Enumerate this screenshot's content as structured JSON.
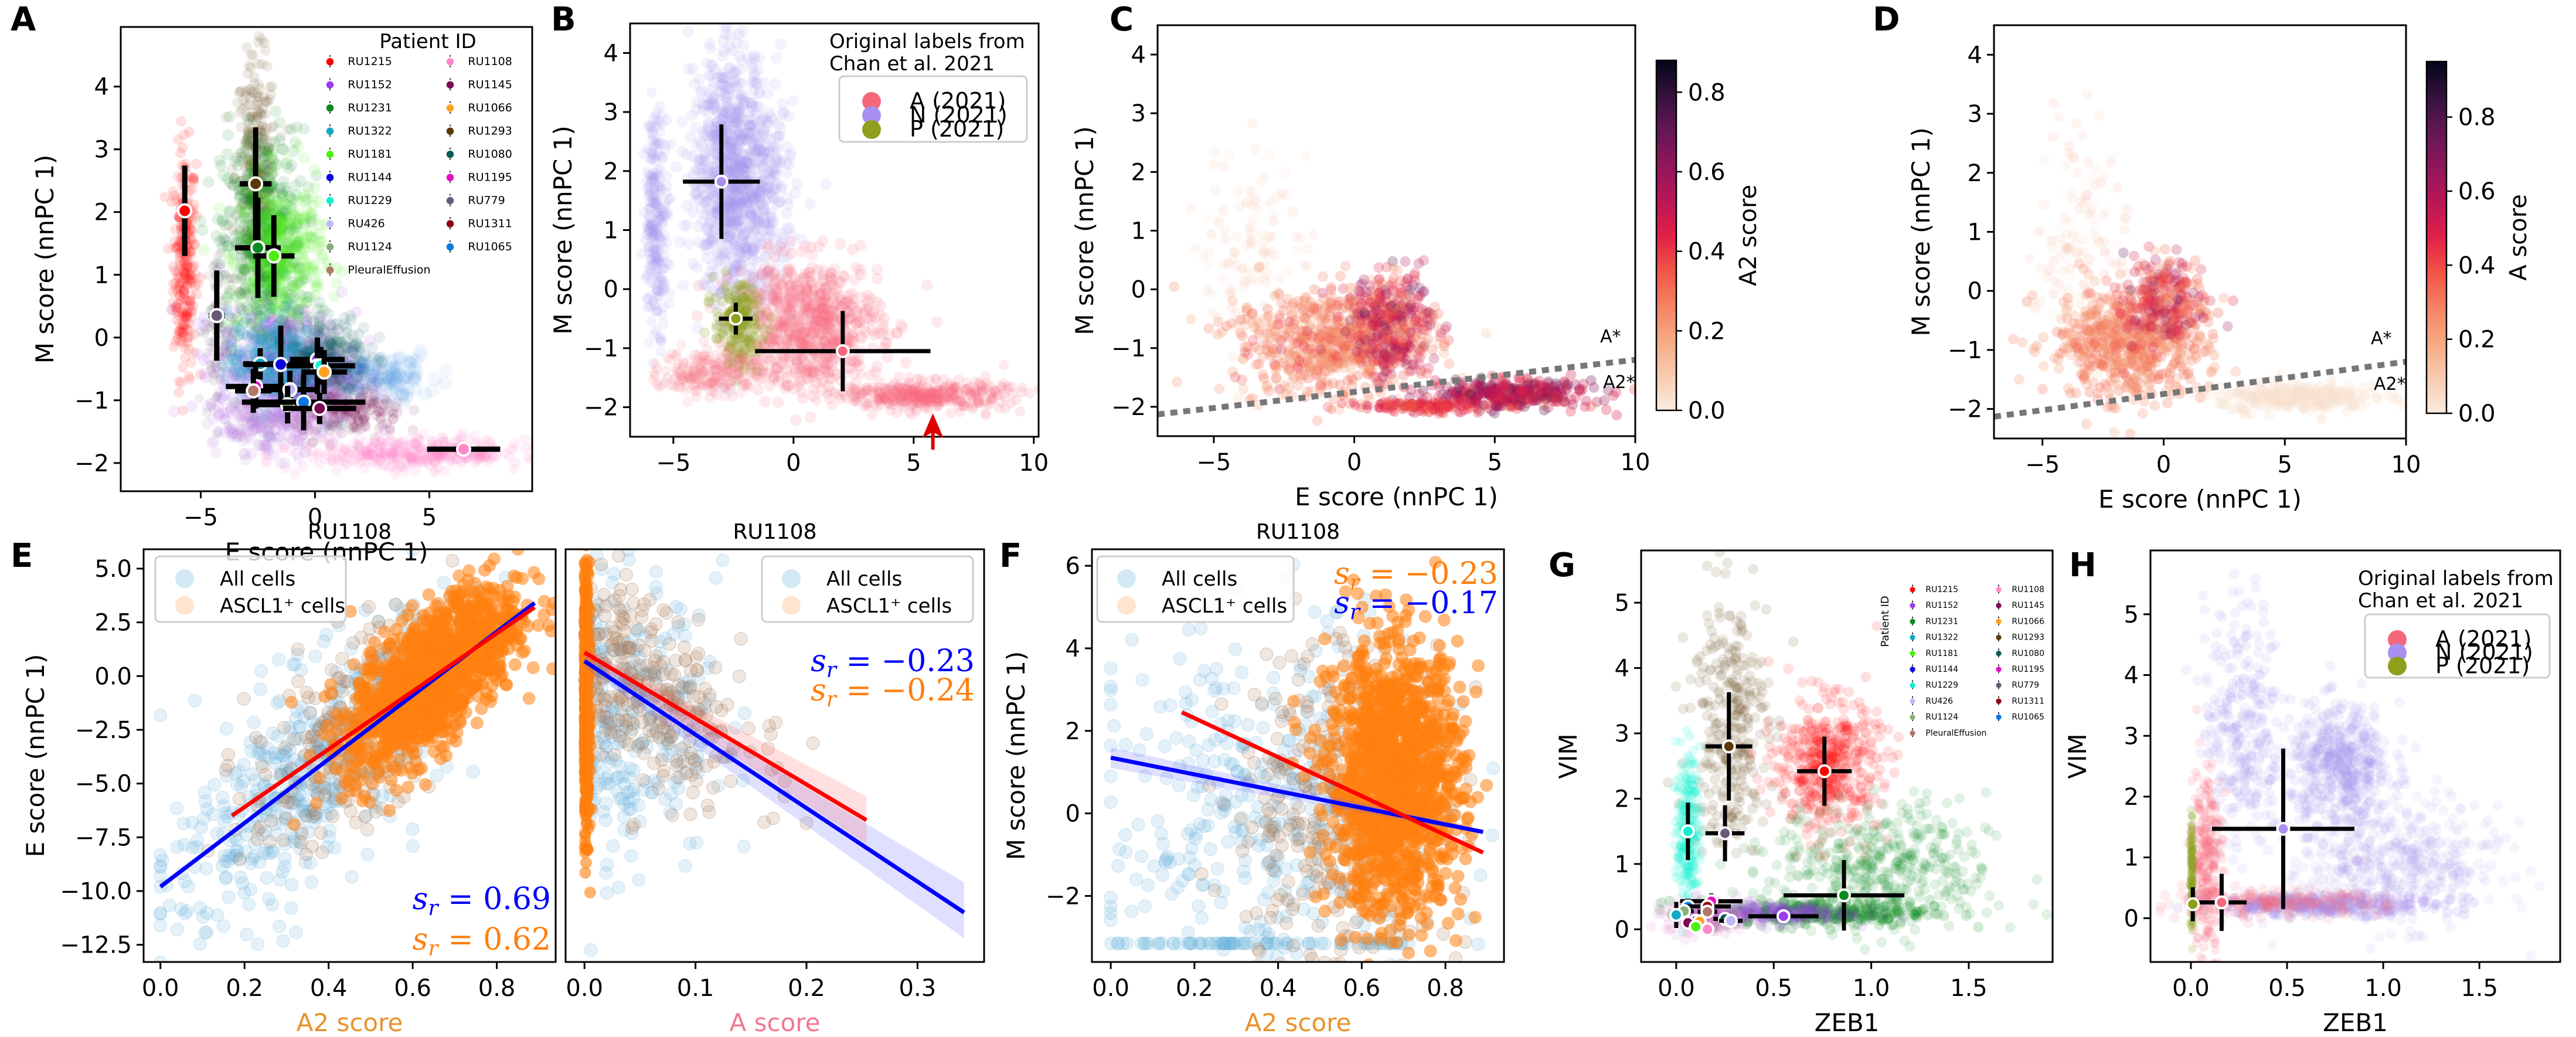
{
  "figure": {
    "panel_letters": [
      "A",
      "B",
      "C",
      "D",
      "E",
      "F",
      "G",
      "H"
    ]
  },
  "colors": {
    "patients": {
      "RU1215": "#ff0000",
      "RU1152": "#9b3cf0",
      "RU1231": "#0a8a1e",
      "RU1322": "#12a8c8",
      "RU1181": "#4cf010",
      "RU1144": "#0a00e0",
      "RU1229": "#10f0d0",
      "RU426": "#c0b8f8",
      "RU1124": "#88b078",
      "PleuralEffusion": "#b07868",
      "RU1108": "#ff88cc",
      "RU1145": "#7a0a50",
      "RU1066": "#ffa020",
      "RU1293": "#5a3808",
      "RU1080": "#0a5a58",
      "RU1195": "#e010c0",
      "RU779": "#6a5878",
      "RU1311": "#900010",
      "RU1065": "#0a78e0"
    },
    "A_2021": "#f5687c",
    "N_2021": "#a890f0",
    "P_2021": "#8ea01c",
    "all_cells": "#6ab4dc",
    "ascl1_cells": "#ff7f0e",
    "fit_all": "#0000ff",
    "fit_ascl1": "#ff0000",
    "divider_line": "#777777",
    "arrow": "#e00000",
    "axis_label_A2": "#e8922a",
    "axis_label_A": "#f07890"
  },
  "chart_data": [
    {
      "panel": "A",
      "type": "scatter",
      "xlabel": "E score (nnPC 1)",
      "ylabel": "M score (nnPC 1)",
      "xlim": [
        -8.5,
        9.5
      ],
      "ylim": [
        -2.45,
        4.95
      ],
      "xticks": [
        -5,
        0,
        5
      ],
      "yticks": [
        -2,
        -1,
        0,
        1,
        2,
        3,
        4
      ],
      "legend_title": "Patient ID",
      "legend_position": "top-right",
      "legend": [
        "RU1215",
        "RU1152",
        "RU1231",
        "RU1322",
        "RU1181",
        "RU1144",
        "RU1229",
        "RU426",
        "RU1124",
        "PleuralEffusion",
        "RU1108",
        "RU1145",
        "RU1066",
        "RU1293",
        "RU1080",
        "RU1195",
        "RU779",
        "RU1311",
        "RU1065"
      ],
      "centroids": [
        {
          "id": "RU1215",
          "x": -5.7,
          "y": 2.02,
          "xerr": 0.25,
          "yerr": 0.72
        },
        {
          "id": "RU1293",
          "x": -2.6,
          "y": 2.45,
          "xerr": 0.7,
          "yerr": 0.9
        },
        {
          "id": "RU1231",
          "x": -2.5,
          "y": 1.43,
          "xerr": 1.0,
          "yerr": 0.8
        },
        {
          "id": "RU1181",
          "x": -1.8,
          "y": 1.3,
          "xerr": 0.9,
          "yerr": 0.65
        },
        {
          "id": "RU779",
          "x": -4.3,
          "y": 0.35,
          "xerr": 0.35,
          "yerr": 0.72
        },
        {
          "id": "RU1322",
          "x": -2.4,
          "y": -0.42,
          "xerr": 0.75,
          "yerr": 0.25
        },
        {
          "id": "RU1144",
          "x": -1.5,
          "y": -0.43,
          "xerr": 1.6,
          "yerr": 0.62
        },
        {
          "id": "RU1152",
          "x": 0.1,
          "y": -0.35,
          "xerr": 1.2,
          "yerr": 0.35
        },
        {
          "id": "RU1080",
          "x": 0.1,
          "y": -0.45,
          "xerr": 1.1,
          "yerr": 0.45
        },
        {
          "id": "RU1229",
          "x": 0.25,
          "y": -0.45,
          "xerr": 1.5,
          "yerr": 0.3
        },
        {
          "id": "RU1066",
          "x": 0.4,
          "y": -0.55,
          "xerr": 1.0,
          "yerr": 0.35
        },
        {
          "id": "RU1195",
          "x": -2.6,
          "y": -0.78,
          "xerr": 1.3,
          "yerr": 0.35
        },
        {
          "id": "PleuralEffusion",
          "x": -2.7,
          "y": -0.85,
          "xerr": 0.8,
          "yerr": 0.35
        },
        {
          "id": "RU426",
          "x": -1.1,
          "y": -0.83,
          "xerr": 1.1,
          "yerr": 0.3
        },
        {
          "id": "RU1124",
          "x": -1.2,
          "y": -1.07,
          "xerr": 1.3,
          "yerr": 0.3
        },
        {
          "id": "RU1065",
          "x": -0.5,
          "y": -1.03,
          "xerr": 2.7,
          "yerr": 0.45
        },
        {
          "id": "RU1145",
          "x": 0.2,
          "y": -1.13,
          "xerr": 1.6,
          "yerr": 0.25
        },
        {
          "id": "RU1108",
          "x": 6.5,
          "y": -1.78,
          "xerr": 1.6,
          "yerr": 0.05
        }
      ]
    },
    {
      "panel": "B",
      "type": "scatter",
      "xlabel": "",
      "ylabel": "M score (nnPC 1)",
      "xlim": [
        -6.8,
        10.2
      ],
      "ylim": [
        -2.5,
        4.5
      ],
      "xticks": [
        -5,
        0,
        5,
        10
      ],
      "yticks": [
        -2,
        -1,
        0,
        1,
        2,
        3,
        4
      ],
      "legend_title": "Original labels from\nChan et al. 2021",
      "legend_position": "top-right",
      "legend": [
        "A (2021)",
        "N (2021)",
        "P (2021)"
      ],
      "centroids": [
        {
          "id": "N (2021)",
          "x": -3.0,
          "y": 1.82,
          "xerr": 1.6,
          "yerr": 0.97
        },
        {
          "id": "P (2021)",
          "x": -2.4,
          "y": -0.5,
          "xerr": 0.7,
          "yerr": 0.27
        },
        {
          "id": "A (2021)",
          "x": 2.05,
          "y": -1.05,
          "xerr": 3.65,
          "yerr": 0.68
        }
      ],
      "annotation": {
        "type": "arrow",
        "x": 5.8,
        "points": "up"
      }
    },
    {
      "panel": "C",
      "type": "scatter",
      "xlabel": "E score (nnPC 1)",
      "ylabel": "M score (nnPC 1)",
      "xlim": [
        -7,
        10
      ],
      "ylim": [
        -2.5,
        4.5
      ],
      "xticks": [
        -5,
        0,
        5,
        10
      ],
      "yticks": [
        -2,
        -1,
        0,
        1,
        2,
        3,
        4
      ],
      "colorbar": {
        "label": "A2 score",
        "range": [
          0,
          0.88
        ],
        "ticks": [
          0.0,
          0.2,
          0.4,
          0.6,
          0.8
        ],
        "cmap": "rocket_r"
      },
      "divider": {
        "x": [
          -7,
          10
        ],
        "y": [
          -2.13,
          -1.2
        ],
        "labels_above": "A*",
        "labels_below": "A2*"
      }
    },
    {
      "panel": "D",
      "type": "scatter",
      "xlabel": "E score (nnPC 1)",
      "ylabel": "M score (nnPC 1)",
      "xlim": [
        -7,
        10
      ],
      "ylim": [
        -2.5,
        4.5
      ],
      "xticks": [
        -5,
        0,
        5,
        10
      ],
      "yticks": [
        -2,
        -1,
        0,
        1,
        2,
        3,
        4
      ],
      "colorbar": {
        "label": "A score",
        "range": [
          0,
          0.95
        ],
        "ticks": [
          0.0,
          0.2,
          0.4,
          0.6,
          0.8
        ],
        "cmap": "rocket_r"
      },
      "divider": {
        "x": [
          -7,
          10
        ],
        "y": [
          -2.13,
          -1.2
        ],
        "labels_above": "A*",
        "labels_below": "A2*"
      }
    },
    {
      "panel": "E-left",
      "type": "scatter",
      "title": "RU1108",
      "xlabel": "A2 score",
      "ylabel": "E score (nnPC 1)",
      "xlim": [
        -0.04,
        0.94
      ],
      "ylim": [
        -13.3,
        5.9
      ],
      "xticks": [
        0.0,
        0.2,
        0.4,
        0.6,
        0.8
      ],
      "yticks": [
        5.0,
        2.5,
        0.0,
        -2.5,
        -5.0,
        -7.5,
        -10.0,
        -12.5
      ],
      "legend": [
        "All cells",
        "ASCL1⁺ cells"
      ],
      "legend_position": "top-left",
      "fits": [
        {
          "series": "All cells",
          "x": [
            0.0,
            0.89
          ],
          "y": [
            -9.8,
            3.4
          ]
        },
        {
          "series": "ASCL1⁺ cells",
          "x": [
            0.17,
            0.89
          ],
          "y": [
            -6.5,
            3.2
          ]
        }
      ],
      "stats": [
        {
          "label": "s_r = 0.69",
          "series": "All cells"
        },
        {
          "label": "s_r = 0.62",
          "series": "ASCL1⁺ cells"
        }
      ]
    },
    {
      "panel": "E-right",
      "type": "scatter",
      "title": "RU1108",
      "xlabel": "A score",
      "ylabel": "",
      "xlim": [
        -0.017,
        0.36
      ],
      "ylim": [
        -13.3,
        5.9
      ],
      "xticks": [
        0.0,
        0.1,
        0.2,
        0.3
      ],
      "legend": [
        "All cells",
        "ASCL1⁺ cells"
      ],
      "legend_position": "top-right",
      "fits": [
        {
          "series": "All cells",
          "x": [
            0.0,
            0.342
          ],
          "y": [
            0.7,
            -11.0
          ]
        },
        {
          "series": "ASCL1⁺ cells",
          "x": [
            0.0,
            0.254
          ],
          "y": [
            1.1,
            -6.7
          ]
        }
      ],
      "stats": [
        {
          "label": "s_r = −0.23",
          "series": "All cells"
        },
        {
          "label": "s_r = −0.24",
          "series": "ASCL1⁺ cells"
        }
      ]
    },
    {
      "panel": "F",
      "type": "scatter",
      "title": "RU1108",
      "xlabel": "A2 score",
      "ylabel": "M score (nnPC 1)",
      "xlim": [
        -0.045,
        0.94
      ],
      "ylim": [
        -3.6,
        6.4
      ],
      "xticks": [
        0.0,
        0.2,
        0.4,
        0.6,
        0.8
      ],
      "yticks": [
        -2,
        0,
        2,
        4,
        6
      ],
      "legend": [
        "All cells",
        "ASCL1⁺ cells"
      ],
      "legend_position": "top-left",
      "fits": [
        {
          "series": "All cells",
          "x": [
            0.0,
            0.89
          ],
          "y": [
            1.35,
            -0.45
          ]
        },
        {
          "series": "ASCL1⁺ cells",
          "x": [
            0.17,
            0.89
          ],
          "y": [
            2.45,
            -0.95
          ]
        }
      ],
      "stats": [
        {
          "label": "s_r = −0.23",
          "series": "ASCL1⁺ cells"
        },
        {
          "label": "s_r = −0.17",
          "series": "All cells"
        }
      ]
    },
    {
      "panel": "G",
      "type": "scatter",
      "xlabel": "ZEB1",
      "ylabel": "VIM",
      "xlim": [
        -0.18,
        1.93
      ],
      "ylim": [
        -0.5,
        5.8
      ],
      "xticks": [
        0.0,
        0.5,
        1.0,
        1.5
      ],
      "yticks": [
        0,
        1,
        2,
        3,
        4,
        5
      ],
      "legend_title": "Patient ID",
      "legend_position": "top-right",
      "centroids": [
        {
          "id": "RU1293",
          "x": 0.27,
          "y": 2.8,
          "xerr": 0.12,
          "yerr": 0.83
        },
        {
          "id": "RU1215",
          "x": 0.76,
          "y": 2.42,
          "xerr": 0.14,
          "yerr": 0.53
        },
        {
          "id": "RU1229",
          "x": 0.06,
          "y": 1.5,
          "xerr": 0.01,
          "yerr": 0.44
        },
        {
          "id": "RU779",
          "x": 0.25,
          "y": 1.47,
          "xerr": 0.1,
          "yerr": 0.43
        },
        {
          "id": "RU1231",
          "x": 0.86,
          "y": 0.52,
          "xerr": 0.31,
          "yerr": 0.54
        },
        {
          "id": "RU1152",
          "x": 0.55,
          "y": 0.2,
          "xerr": 0.18,
          "yerr": 0.02
        },
        {
          "id": "RU1195",
          "x": 0.18,
          "y": 0.43,
          "xerr": 0.16,
          "yerr": 0.12
        },
        {
          "id": "RU1065",
          "x": 0.06,
          "y": 0.35,
          "xerr": 0.04,
          "yerr": 0.12
        },
        {
          "id": "RU1311",
          "x": 0.16,
          "y": 0.35,
          "xerr": 0.12,
          "yerr": 0.1
        },
        {
          "id": "RU1124",
          "x": 0.04,
          "y": 0.28,
          "xerr": 0.05,
          "yerr": 0.1
        },
        {
          "id": "PleuralEffusion",
          "x": 0.16,
          "y": 0.27,
          "xerr": 0.05,
          "yerr": 0.05
        },
        {
          "id": "RU1322",
          "x": 0.0,
          "y": 0.22,
          "xerr": 0.01,
          "yerr": 0.2
        },
        {
          "id": "RU1080",
          "x": 0.25,
          "y": 0.16,
          "xerr": 0.06,
          "yerr": 0.05
        },
        {
          "id": "RU426",
          "x": 0.28,
          "y": 0.13,
          "xerr": 0.06,
          "yerr": 0.05
        },
        {
          "id": "RU1144",
          "x": 0.1,
          "y": 0.13,
          "xerr": 0.04,
          "yerr": 0.07
        },
        {
          "id": "RU1066",
          "x": 0.12,
          "y": 0.12,
          "xerr": 0.03,
          "yerr": 0.05
        },
        {
          "id": "RU1145",
          "x": 0.06,
          "y": 0.1,
          "xerr": 0.02,
          "yerr": 0.07
        },
        {
          "id": "RU1181",
          "x": 0.1,
          "y": 0.04,
          "xerr": 0.02,
          "yerr": 0.02
        },
        {
          "id": "RU1108",
          "x": 0.16,
          "y": 0.0,
          "xerr": 0.02,
          "yerr": 0.02
        }
      ]
    },
    {
      "panel": "H",
      "type": "scatter",
      "xlabel": "ZEB1",
      "ylabel": "VIM",
      "xlim": [
        -0.21,
        1.92
      ],
      "ylim": [
        -0.72,
        6.05
      ],
      "xticks": [
        0.0,
        0.5,
        1.0,
        1.5
      ],
      "yticks": [
        0,
        1,
        2,
        3,
        4,
        5
      ],
      "legend_title": "Original labels from\nChan et al. 2021",
      "legend_position": "top-right",
      "legend": [
        "A (2021)",
        "N (2021)",
        "P (2021)"
      ],
      "centroids": [
        {
          "id": "N (2021)",
          "x": 0.48,
          "y": 1.47,
          "xerr": 0.37,
          "yerr": 1.32
        },
        {
          "id": "A (2021)",
          "x": 0.16,
          "y": 0.26,
          "xerr": 0.13,
          "yerr": 0.47
        },
        {
          "id": "P (2021)",
          "x": 0.01,
          "y": 0.23,
          "xerr": 0.01,
          "yerr": 0.28
        }
      ]
    }
  ]
}
